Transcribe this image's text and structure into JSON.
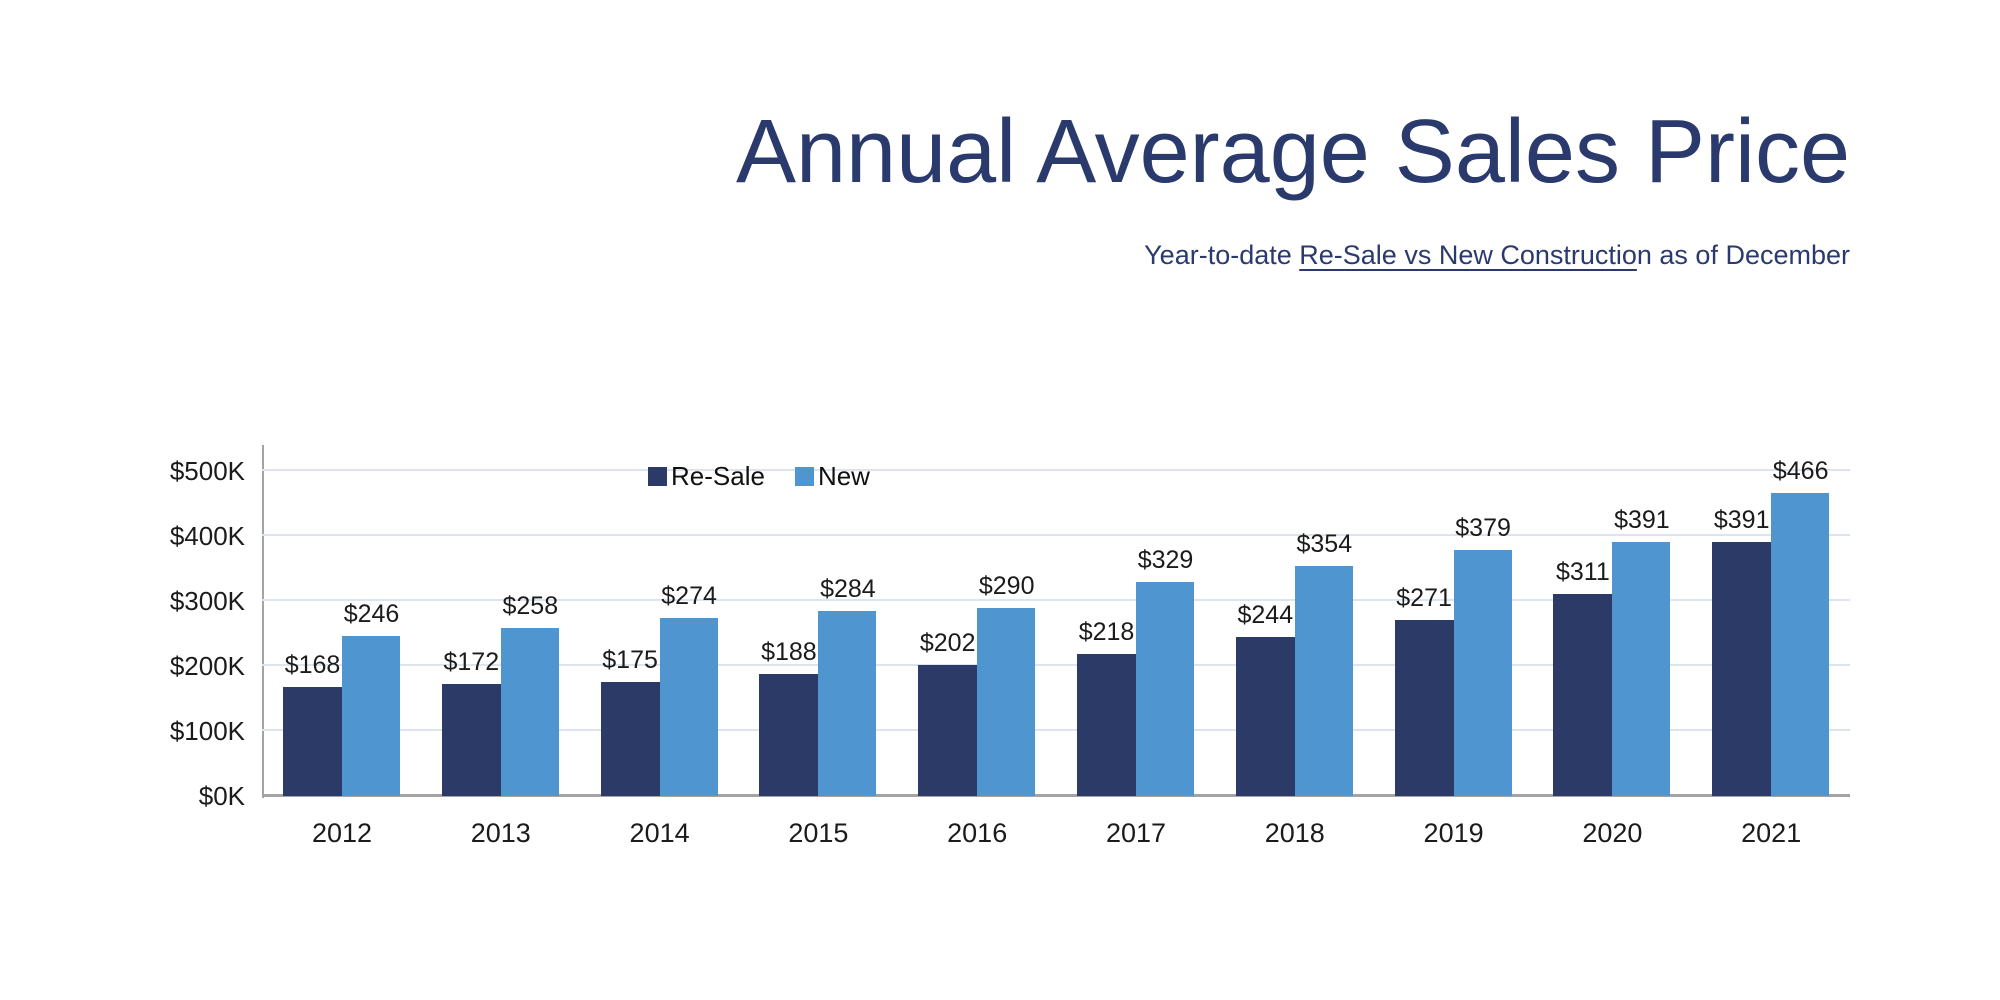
{
  "header": {
    "title": "Annual Average Sales Price",
    "subtitle_prefix": "Year-to-date ",
    "subtitle_underlined": "Re-Sale vs New Constructio",
    "subtitle_suffix": "n as of December"
  },
  "colors": {
    "title_navy": "#2B3A6D",
    "bar_resale": "#2B3A67",
    "bar_new": "#4F96D1",
    "gridline": "#DCE4F0",
    "axis_line": "#A3A3A6",
    "label_text": "#1B1B1B"
  },
  "chart_data": {
    "type": "bar",
    "title": "Annual Average Sales Price",
    "subtitle": "Year-to-date Re-Sale vs New Construction as of December",
    "categories": [
      "2012",
      "2013",
      "2014",
      "2015",
      "2016",
      "2017",
      "2018",
      "2019",
      "2020",
      "2021"
    ],
    "series": [
      {
        "name": "Re-Sale",
        "color": "#2B3A67",
        "values": [
          168,
          172,
          175,
          188,
          202,
          218,
          244,
          271,
          311,
          391
        ]
      },
      {
        "name": "New",
        "color": "#4F96D1",
        "values": [
          246,
          258,
          274,
          284,
          290,
          329,
          354,
          379,
          391,
          466
        ]
      }
    ],
    "value_label_prefix": "$",
    "units": "thousands of dollars",
    "yticks": [
      0,
      100,
      200,
      300,
      400,
      500
    ],
    "ytick_labels": [
      "$0K",
      "$100K",
      "$200K",
      "$300K",
      "$400K",
      "$500K"
    ],
    "ylim": [
      0,
      500
    ],
    "xlabel": "",
    "ylabel": "",
    "grid": true,
    "legend_position": "top-center"
  }
}
